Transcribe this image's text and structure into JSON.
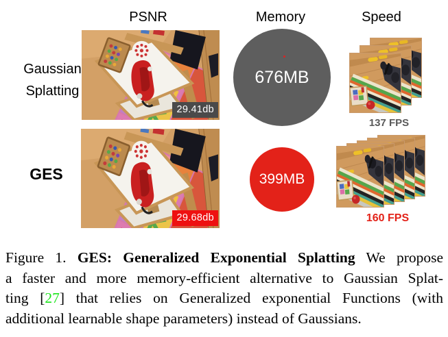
{
  "columns": {
    "psnr": "PSNR",
    "memory": "Memory",
    "speed": "Speed"
  },
  "rows": [
    {
      "name": "Gaussian Splatting",
      "label_line1": "Gaussian",
      "label_line2": "Splatting",
      "psnr_value": "29.41db",
      "memory_value": "676MB",
      "fps_value": "137 FPS",
      "frame_count": 3,
      "accent_color": "#5e5e5e",
      "psnr_badge_color": "#4a4a4a",
      "fps_color": "#595959"
    },
    {
      "name": "GES",
      "label_line1": "GES",
      "label_line2": "",
      "psnr_value": "29.68db",
      "memory_value": "399MB",
      "fps_value": "160 FPS",
      "frame_count": 5,
      "accent_color": "#e32219",
      "psnr_badge_color": "#ee1111",
      "fps_color": "#e32219"
    }
  ],
  "caption": {
    "lines": [
      {
        "segments": [
          {
            "t": "Figure 1. "
          },
          {
            "t": "GES: Generalized Exponential Splatting",
            "bold": true
          },
          {
            "t": " We propose"
          }
        ]
      },
      {
        "segments": [
          {
            "t": "a faster and more memory-efficient alternative to Gaussian Splat-"
          }
        ]
      },
      {
        "segments": [
          {
            "t": "ting ["
          },
          {
            "t": "27",
            "cite": true
          },
          {
            "t": "] that relies on Generalized exponential Functions (with"
          }
        ]
      },
      {
        "segments": [
          {
            "t": "additional learnable shape parameters) instead of Gaussians."
          }
        ]
      }
    ]
  },
  "colors": {
    "citation_green": "#1ae51a",
    "memory_gray": "#5e5e5e",
    "memory_red": "#e32219",
    "text_black": "#000000",
    "page_background": "#ffffff"
  }
}
